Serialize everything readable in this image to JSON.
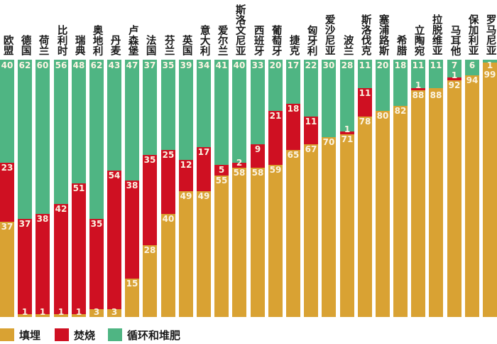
{
  "chart_data": {
    "type": "bar",
    "stacked": true,
    "orientation": "vertical",
    "unit": "percent",
    "ylim": [
      0,
      100
    ],
    "grid": false,
    "axes_shown": false,
    "value_labels": "each non-zero segment labeled in light text inside bar",
    "categories": [
      "欧盟",
      "德国",
      "荷兰",
      "比利时",
      "瑞典",
      "奥地利",
      "丹麦",
      "卢森堡",
      "法国",
      "芬兰",
      "英国",
      "意大利",
      "爱尔兰",
      "斯洛文尼亚",
      "西班牙",
      "葡萄牙",
      "捷克",
      "匈牙利",
      "爱沙尼亚",
      "波兰",
      "斯洛伐克",
      "塞浦路斯",
      "希腊",
      "立陶宛",
      "拉脱维亚",
      "马耳他",
      "保加利亚",
      "罗马尼亚"
    ],
    "series": [
      {
        "name": "循环和堆肥",
        "stack_position": "top",
        "color": "#4fb583",
        "values": [
          40,
          62,
          60,
          56,
          48,
          62,
          43,
          47,
          37,
          35,
          39,
          34,
          41,
          40,
          33,
          20,
          17,
          22,
          30,
          28,
          11,
          20,
          18,
          11,
          11,
          7,
          6,
          1
        ]
      },
      {
        "name": "焚烧",
        "stack_position": "middle",
        "color": "#cf1022",
        "values": [
          23,
          37,
          38,
          42,
          51,
          35,
          54,
          38,
          35,
          25,
          12,
          17,
          5,
          2,
          9,
          21,
          18,
          11,
          0,
          1,
          11,
          0,
          0,
          1,
          0,
          1,
          0,
          0
        ]
      },
      {
        "name": "填埋",
        "stack_position": "bottom",
        "color": "#d9a233",
        "values": [
          37,
          1,
          1,
          1,
          1,
          3,
          3,
          15,
          28,
          40,
          49,
          49,
          55,
          58,
          58,
          59,
          65,
          67,
          70,
          71,
          78,
          80,
          82,
          88,
          88,
          92,
          94,
          99
        ]
      }
    ],
    "legend": {
      "position": "bottom-left",
      "items": [
        {
          "label": "填埋",
          "color": "#d9a233"
        },
        {
          "label": "焚烧",
          "color": "#cf1022"
        },
        {
          "label": "循环和堆肥",
          "color": "#4fb583"
        }
      ]
    }
  }
}
